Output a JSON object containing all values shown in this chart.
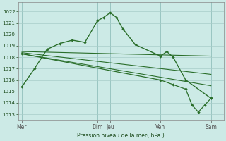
{
  "bg_color": "#cceae6",
  "grid_color": "#a8ccc8",
  "line_color": "#2a6e2a",
  "x_ticks_labels": [
    "Mer",
    "Dim",
    "Jeu",
    "Ven",
    "Sam"
  ],
  "x_ticks_pos": [
    0,
    6,
    7,
    11,
    15
  ],
  "xlim": [
    -0.3,
    16.0
  ],
  "ylabel": "Pression niveau de la mer( hPa )",
  "ylim": [
    1012.5,
    1022.8
  ],
  "yticks": [
    1013,
    1014,
    1015,
    1016,
    1017,
    1018,
    1019,
    1020,
    1021,
    1022
  ],
  "series1_x": [
    0,
    1,
    2,
    3,
    4,
    5,
    6,
    6.5,
    7,
    7.5,
    8,
    9,
    11,
    11.5,
    12,
    13,
    15
  ],
  "series1_y": [
    1015.4,
    1017.0,
    1018.7,
    1019.2,
    1019.5,
    1019.3,
    1021.2,
    1021.5,
    1021.9,
    1021.5,
    1020.5,
    1019.1,
    1018.1,
    1018.5,
    1018.0,
    1016.0,
    1014.4
  ],
  "series2_x": [
    0,
    15
  ],
  "series2_y": [
    1018.5,
    1018.1
  ],
  "series3_x": [
    0,
    15
  ],
  "series3_y": [
    1018.4,
    1016.5
  ],
  "series4_x": [
    0,
    15
  ],
  "series4_y": [
    1018.3,
    1015.5
  ],
  "series5_x": [
    0,
    11,
    12,
    13,
    13.5,
    14,
    14.5,
    15
  ],
  "series5_y": [
    1018.3,
    1016.0,
    1015.6,
    1015.2,
    1013.8,
    1013.2,
    1013.8,
    1014.4
  ],
  "figsize": [
    3.2,
    2.0
  ],
  "dpi": 100
}
